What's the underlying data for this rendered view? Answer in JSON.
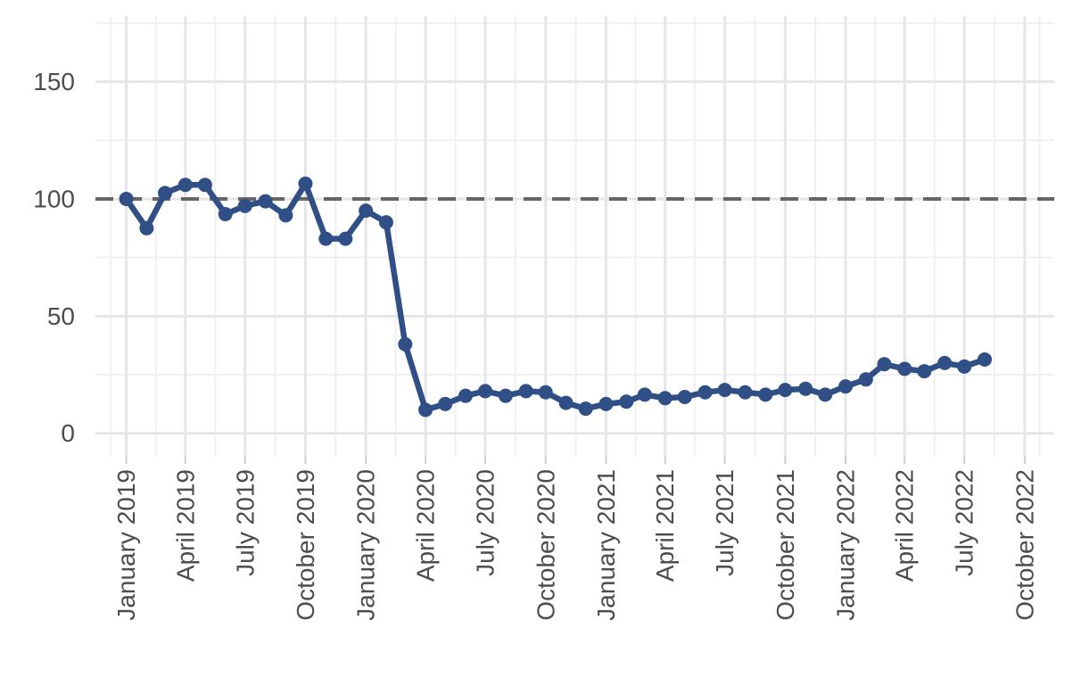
{
  "chart_data": {
    "type": "line",
    "title": "",
    "xlabel": "",
    "ylabel": "",
    "ylim": [
      -10,
      178
    ],
    "xlim": [
      "2018-11-15",
      "2022-11-15"
    ],
    "grid": true,
    "legend": "none",
    "line_color": "#2f4f86",
    "reference_line": {
      "y": 100,
      "style": "dashed",
      "color": "#666666"
    },
    "y_ticks": [
      {
        "value": 0,
        "label": "0"
      },
      {
        "value": 50,
        "label": "50"
      },
      {
        "value": 100,
        "label": "100"
      },
      {
        "value": 150,
        "label": "150"
      }
    ],
    "x_ticks": [
      {
        "date": "2019-01-01",
        "label": "January 2019"
      },
      {
        "date": "2019-04-01",
        "label": "April 2019"
      },
      {
        "date": "2019-07-01",
        "label": "July 2019"
      },
      {
        "date": "2019-10-01",
        "label": "October 2019"
      },
      {
        "date": "2020-01-01",
        "label": "January 2020"
      },
      {
        "date": "2020-04-01",
        "label": "April 2020"
      },
      {
        "date": "2020-07-01",
        "label": "July 2020"
      },
      {
        "date": "2020-10-01",
        "label": "October 2020"
      },
      {
        "date": "2021-01-01",
        "label": "January 2021"
      },
      {
        "date": "2021-04-01",
        "label": "April 2021"
      },
      {
        "date": "2021-07-01",
        "label": "July 2021"
      },
      {
        "date": "2021-10-01",
        "label": "October 2021"
      },
      {
        "date": "2022-01-01",
        "label": "January 2022"
      },
      {
        "date": "2022-04-01",
        "label": "April 2022"
      },
      {
        "date": "2022-07-01",
        "label": "July 2022"
      },
      {
        "date": "2022-10-01",
        "label": "October 2022"
      }
    ],
    "series": [
      {
        "x": [
          "2019-01-01",
          "2019-02-01",
          "2019-03-01",
          "2019-04-01",
          "2019-05-01",
          "2019-06-01",
          "2019-07-01",
          "2019-08-01",
          "2019-09-01",
          "2019-10-01",
          "2019-11-01",
          "2019-12-01",
          "2020-01-01",
          "2020-02-01",
          "2020-03-01",
          "2020-04-01",
          "2020-05-01",
          "2020-06-01",
          "2020-07-01",
          "2020-08-01",
          "2020-09-01",
          "2020-10-01",
          "2020-11-01",
          "2020-12-01",
          "2021-01-01",
          "2021-02-01",
          "2021-03-01",
          "2021-04-01",
          "2021-05-01",
          "2021-06-01",
          "2021-07-01",
          "2021-08-01",
          "2021-09-01",
          "2021-10-01",
          "2021-11-01",
          "2021-12-01",
          "2022-01-01",
          "2022-02-01",
          "2022-03-01",
          "2022-04-01",
          "2022-05-01",
          "2022-06-01",
          "2022-07-01",
          "2022-08-01"
        ],
        "y": [
          100,
          87.5,
          102.5,
          106,
          106,
          93.5,
          97,
          99,
          93,
          106.5,
          83,
          83,
          95,
          90,
          38,
          10,
          12.5,
          16,
          18,
          16,
          18,
          17.5,
          13,
          10.5,
          12.5,
          13.5,
          16.5,
          15,
          15.5,
          17.5,
          18.5,
          17.5,
          16.5,
          18.5,
          19,
          16.5,
          20,
          23,
          29.5,
          27.5,
          26.5,
          30,
          28.5,
          31.5
        ]
      }
    ]
  }
}
